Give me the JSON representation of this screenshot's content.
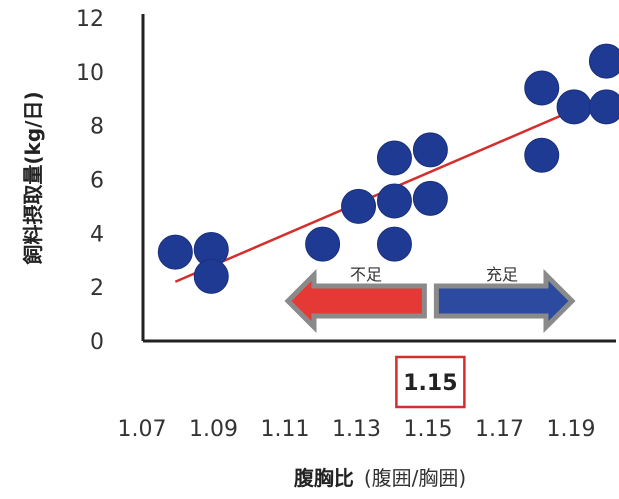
{
  "chart_data": {
    "type": "scatter",
    "ylabel": "飼料摂取量(kg/日)",
    "xlabel_main": "腹胸比",
    "xlabel_sub": "(腹囲/胸囲)",
    "xlim": [
      1.07,
      1.2
    ],
    "ylim": [
      0,
      12
    ],
    "x_ticks": [
      "1.07",
      "1.09",
      "1.11",
      "1.13",
      "1.15",
      "1.17",
      "1.19"
    ],
    "y_ticks": [
      "0",
      "2",
      "4",
      "6",
      "8",
      "10",
      "12"
    ],
    "points": [
      {
        "x": 1.079,
        "y": 3.3
      },
      {
        "x": 1.089,
        "y": 3.4
      },
      {
        "x": 1.089,
        "y": 2.4
      },
      {
        "x": 1.12,
        "y": 3.6
      },
      {
        "x": 1.13,
        "y": 5.0
      },
      {
        "x": 1.14,
        "y": 6.8
      },
      {
        "x": 1.14,
        "y": 5.2
      },
      {
        "x": 1.14,
        "y": 3.6
      },
      {
        "x": 1.15,
        "y": 7.1
      },
      {
        "x": 1.15,
        "y": 5.3
      },
      {
        "x": 1.181,
        "y": 9.4
      },
      {
        "x": 1.181,
        "y": 6.9
      },
      {
        "x": 1.19,
        "y": 8.7
      },
      {
        "x": 1.199,
        "y": 10.4
      },
      {
        "x": 1.199,
        "y": 8.7
      }
    ],
    "trendline": {
      "x": [
        1.079,
        1.199
      ],
      "y": [
        2.2,
        9.1
      ]
    },
    "threshold": {
      "value": "1.15",
      "x": 1.15
    },
    "arrows": {
      "left_label": "不足",
      "right_label": "充足"
    },
    "colors": {
      "points": "#1f3a93",
      "trendline": "#d32f2f",
      "left_arrow": "#e53935",
      "right_arrow": "#2b4aa0",
      "arrow_outline": "#8a8a8a",
      "highlight_box": "#d32f2f"
    }
  }
}
